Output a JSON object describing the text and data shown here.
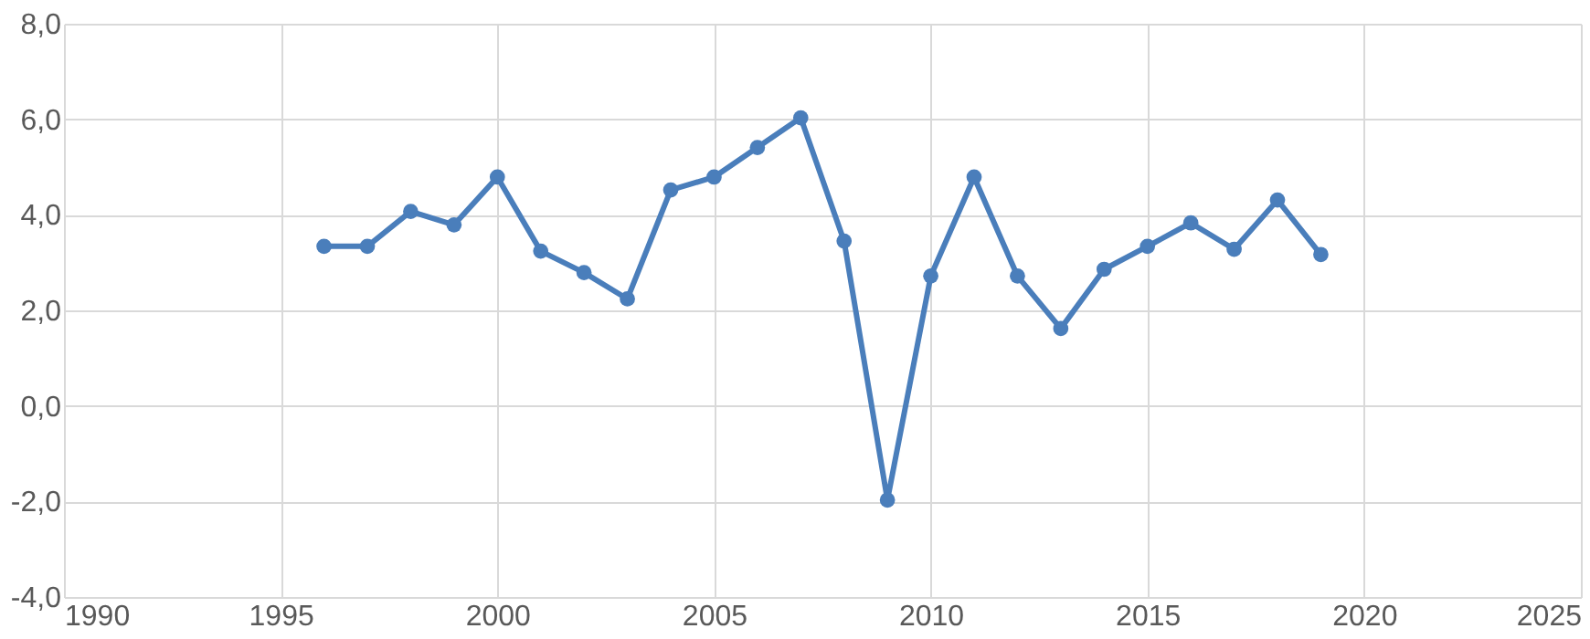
{
  "chart_data": {
    "type": "line",
    "x": [
      1996,
      1997,
      1998,
      1999,
      2000,
      2001,
      2002,
      2003,
      2004,
      2005,
      2006,
      2007,
      2008,
      2009,
      2010,
      2011,
      2012,
      2013,
      2014,
      2015,
      2016,
      2017,
      2018,
      2019
    ],
    "series": [
      {
        "color": "#4a7ebb",
        "values": [
          3.34,
          3.34,
          4.07,
          3.79,
          4.79,
          3.24,
          2.79,
          2.24,
          4.52,
          4.79,
          5.41,
          6.03,
          3.45,
          -1.97,
          2.72,
          4.79,
          2.72,
          1.62,
          2.86,
          3.34,
          3.83,
          3.28,
          4.31,
          3.17
        ]
      }
    ],
    "xlim": [
      1990,
      2025
    ],
    "xticks": [
      1990,
      1995,
      2000,
      2005,
      2010,
      2015,
      2020,
      2025
    ],
    "ylim": [
      -4,
      8
    ],
    "yticks": [
      {
        "value": -4,
        "label": "-4,0"
      },
      {
        "value": -2,
        "label": "-2,0"
      },
      {
        "value": 0,
        "label": "0,0"
      },
      {
        "value": 2,
        "label": "2,0"
      },
      {
        "value": 4,
        "label": "4,0"
      },
      {
        "value": 6,
        "label": "6,0"
      },
      {
        "value": 8,
        "label": "8,0"
      }
    ],
    "grid": true,
    "marker": "circle",
    "line_style": "solid",
    "legend": false
  }
}
